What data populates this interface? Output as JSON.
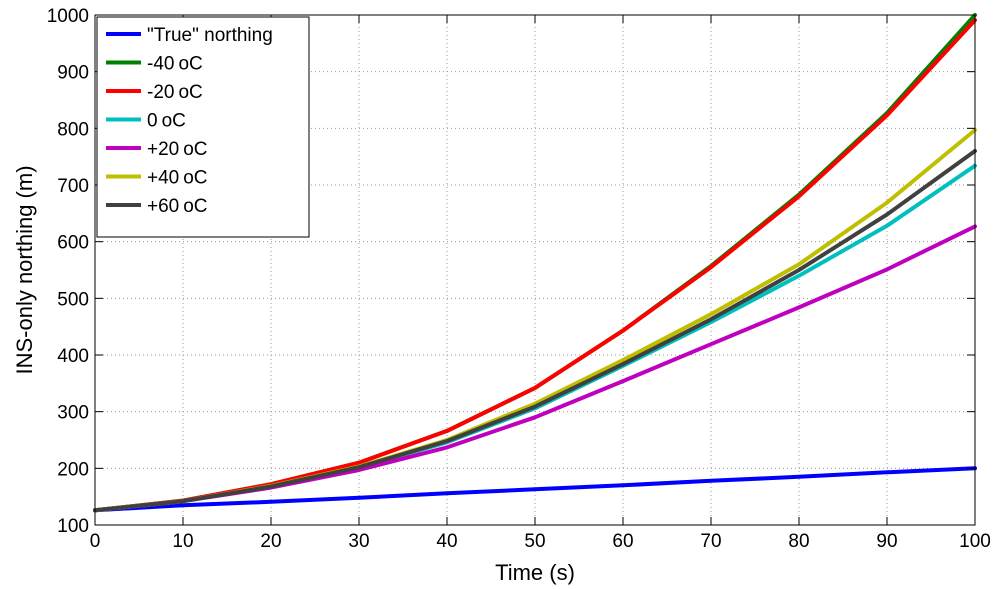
{
  "chart_data": {
    "type": "line",
    "title": "",
    "xlabel": "Time (s)",
    "ylabel": "INS-only northing (m)",
    "xlim": [
      0,
      100
    ],
    "ylim": [
      100,
      1000
    ],
    "xticks": [
      0,
      10,
      20,
      30,
      40,
      50,
      60,
      70,
      80,
      90,
      100
    ],
    "yticks": [
      100,
      200,
      300,
      400,
      500,
      600,
      700,
      800,
      900,
      1000
    ],
    "grid": true,
    "legend_position": "top-left",
    "x": [
      0,
      10,
      20,
      30,
      40,
      50,
      60,
      70,
      80,
      90,
      100
    ],
    "series": [
      {
        "name": "\"True\" northing",
        "unit": "",
        "color": "#0000ff",
        "values": [
          126,
          135,
          141,
          148,
          156,
          163,
          170,
          178,
          185,
          193,
          200
        ]
      },
      {
        "name": "-40",
        "unit": "oC",
        "color": "#008000",
        "values": [
          126,
          143,
          172,
          210,
          266,
          342,
          443,
          557,
          683,
          827,
          1000
        ]
      },
      {
        "name": "-20",
        "unit": "oC",
        "color": "#ff0000",
        "values": [
          126,
          143,
          172,
          210,
          266,
          342,
          443,
          555,
          680,
          823,
          991
        ]
      },
      {
        "name": "  0",
        "unit": "oC",
        "color": "#00bfbf",
        "values": [
          126,
          142,
          168,
          201,
          246,
          306,
          381,
          458,
          540,
          628,
          734
        ]
      },
      {
        "name": "+20",
        "unit": "oC",
        "color": "#bf00bf",
        "values": [
          126,
          142,
          166,
          197,
          237,
          290,
          354,
          419,
          484,
          551,
          627
        ]
      },
      {
        "name": "+40",
        "unit": "oC",
        "color": "#bfbf00",
        "values": [
          126,
          142,
          169,
          203,
          250,
          314,
          391,
          472,
          560,
          669,
          797
        ]
      },
      {
        "name": "+60",
        "unit": "oC",
        "color": "#404040",
        "values": [
          126,
          142,
          168,
          202,
          248,
          309,
          384,
          463,
          550,
          648,
          760
        ]
      }
    ]
  }
}
